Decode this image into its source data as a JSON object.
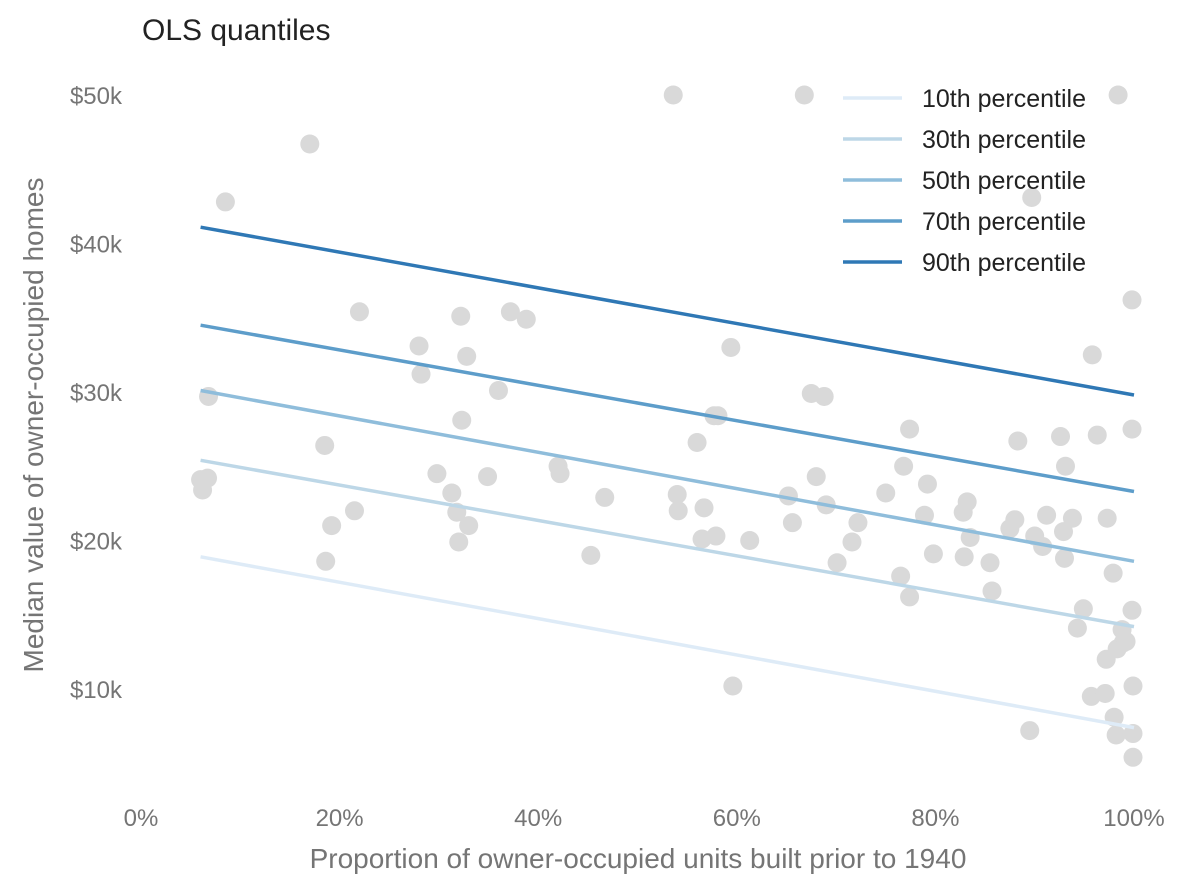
{
  "chart_data": {
    "type": "scatter",
    "title": "OLS quantiles",
    "xlabel": "Proportion of owner-occupied units built prior to 1940",
    "ylabel": "Median value of owner-occupied homes",
    "xlim": [
      0,
      100
    ],
    "ylim": [
      3500,
      51000
    ],
    "x_ticks": [
      0,
      20,
      40,
      60,
      80,
      100
    ],
    "x_tick_labels": [
      "0%",
      "20%",
      "40%",
      "60%",
      "80%",
      "100%"
    ],
    "y_ticks": [
      10000,
      20000,
      30000,
      40000,
      50000
    ],
    "y_tick_labels": [
      "$10k",
      "$20k",
      "$30k",
      "$40k",
      "$50k"
    ],
    "grid": false,
    "legend_position": "top-right",
    "point_color": "#d9d9d9",
    "points": [
      [
        6,
        24100
      ],
      [
        6.2,
        23400
      ],
      [
        6.7,
        24200
      ],
      [
        6.8,
        29700
      ],
      [
        8.5,
        42800
      ],
      [
        17,
        46700
      ],
      [
        18.5,
        26400
      ],
      [
        18.6,
        18600
      ],
      [
        19.2,
        21000
      ],
      [
        21.5,
        22000
      ],
      [
        22,
        35400
      ],
      [
        28,
        33100
      ],
      [
        28.2,
        31200
      ],
      [
        29.8,
        24500
      ],
      [
        31.3,
        23200
      ],
      [
        31.8,
        21900
      ],
      [
        32,
        19900
      ],
      [
        32.2,
        35100
      ],
      [
        32.3,
        28100
      ],
      [
        32.8,
        32400
      ],
      [
        33,
        21000
      ],
      [
        34.9,
        24300
      ],
      [
        36,
        30100
      ],
      [
        37.2,
        35400
      ],
      [
        38.8,
        34900
      ],
      [
        42,
        25000
      ],
      [
        42.2,
        24500
      ],
      [
        45.3,
        19000
      ],
      [
        46.7,
        22900
      ],
      [
        53.6,
        50000
      ],
      [
        54,
        23100
      ],
      [
        54.1,
        22000
      ],
      [
        56,
        26600
      ],
      [
        56.5,
        20100
      ],
      [
        56.7,
        22200
      ],
      [
        57.7,
        28400
      ],
      [
        57.9,
        20300
      ],
      [
        58.1,
        28400
      ],
      [
        59.4,
        33000
      ],
      [
        59.6,
        10200
      ],
      [
        61.3,
        20000
      ],
      [
        65.2,
        23000
      ],
      [
        65.6,
        21200
      ],
      [
        66.8,
        50000
      ],
      [
        67.5,
        29900
      ],
      [
        68,
        24300
      ],
      [
        68.8,
        29700
      ],
      [
        69,
        22400
      ],
      [
        70.1,
        18500
      ],
      [
        71.6,
        19900
      ],
      [
        72.2,
        21200
      ],
      [
        75,
        23200
      ],
      [
        76.5,
        17600
      ],
      [
        76.8,
        25000
      ],
      [
        77.4,
        27500
      ],
      [
        77.4,
        16200
      ],
      [
        78.9,
        21700
      ],
      [
        79.2,
        23800
      ],
      [
        79.8,
        19100
      ],
      [
        82.8,
        21900
      ],
      [
        82.9,
        18900
      ],
      [
        83.2,
        22600
      ],
      [
        83.5,
        20200
      ],
      [
        85.5,
        18500
      ],
      [
        85.7,
        16600
      ],
      [
        87.5,
        20800
      ],
      [
        88,
        21400
      ],
      [
        88.3,
        26700
      ],
      [
        89.5,
        7200
      ],
      [
        89.7,
        43100
      ],
      [
        90,
        20300
      ],
      [
        90.8,
        19600
      ],
      [
        91.2,
        21700
      ],
      [
        92.6,
        27000
      ],
      [
        92.9,
        20600
      ],
      [
        93,
        18800
      ],
      [
        93.1,
        25000
      ],
      [
        93.8,
        21500
      ],
      [
        94.3,
        14100
      ],
      [
        94.9,
        15400
      ],
      [
        95.7,
        9500
      ],
      [
        95.8,
        32500
      ],
      [
        96.3,
        27100
      ],
      [
        97.1,
        9700
      ],
      [
        97.2,
        12000
      ],
      [
        97.3,
        21500
      ],
      [
        97.9,
        17800
      ],
      [
        98,
        8100
      ],
      [
        98.2,
        6900
      ],
      [
        98.3,
        12700
      ],
      [
        98.4,
        50000
      ],
      [
        98.8,
        14000
      ],
      [
        98.9,
        13100
      ],
      [
        99.2,
        13200
      ],
      [
        99.8,
        36200
      ],
      [
        99.8,
        27500
      ],
      [
        99.8,
        15300
      ],
      [
        99.9,
        10200
      ],
      [
        99.9,
        7000
      ],
      [
        99.9,
        5400
      ]
    ],
    "series": [
      {
        "name": "10th percentile",
        "color": "#deebf7",
        "x": [
          6,
          100
        ],
        "y": [
          18900,
          7400
        ]
      },
      {
        "name": "30th percentile",
        "color": "#bdd7e7",
        "x": [
          6,
          100
        ],
        "y": [
          25400,
          14200
        ]
      },
      {
        "name": "50th percentile",
        "color": "#8fbddb",
        "x": [
          6,
          100
        ],
        "y": [
          30100,
          18600
        ]
      },
      {
        "name": "70th percentile",
        "color": "#5d9dca",
        "x": [
          6,
          100
        ],
        "y": [
          34500,
          23300
        ]
      },
      {
        "name": "90th percentile",
        "color": "#2f78b5",
        "x": [
          6,
          100
        ],
        "y": [
          41100,
          29800
        ]
      }
    ]
  }
}
